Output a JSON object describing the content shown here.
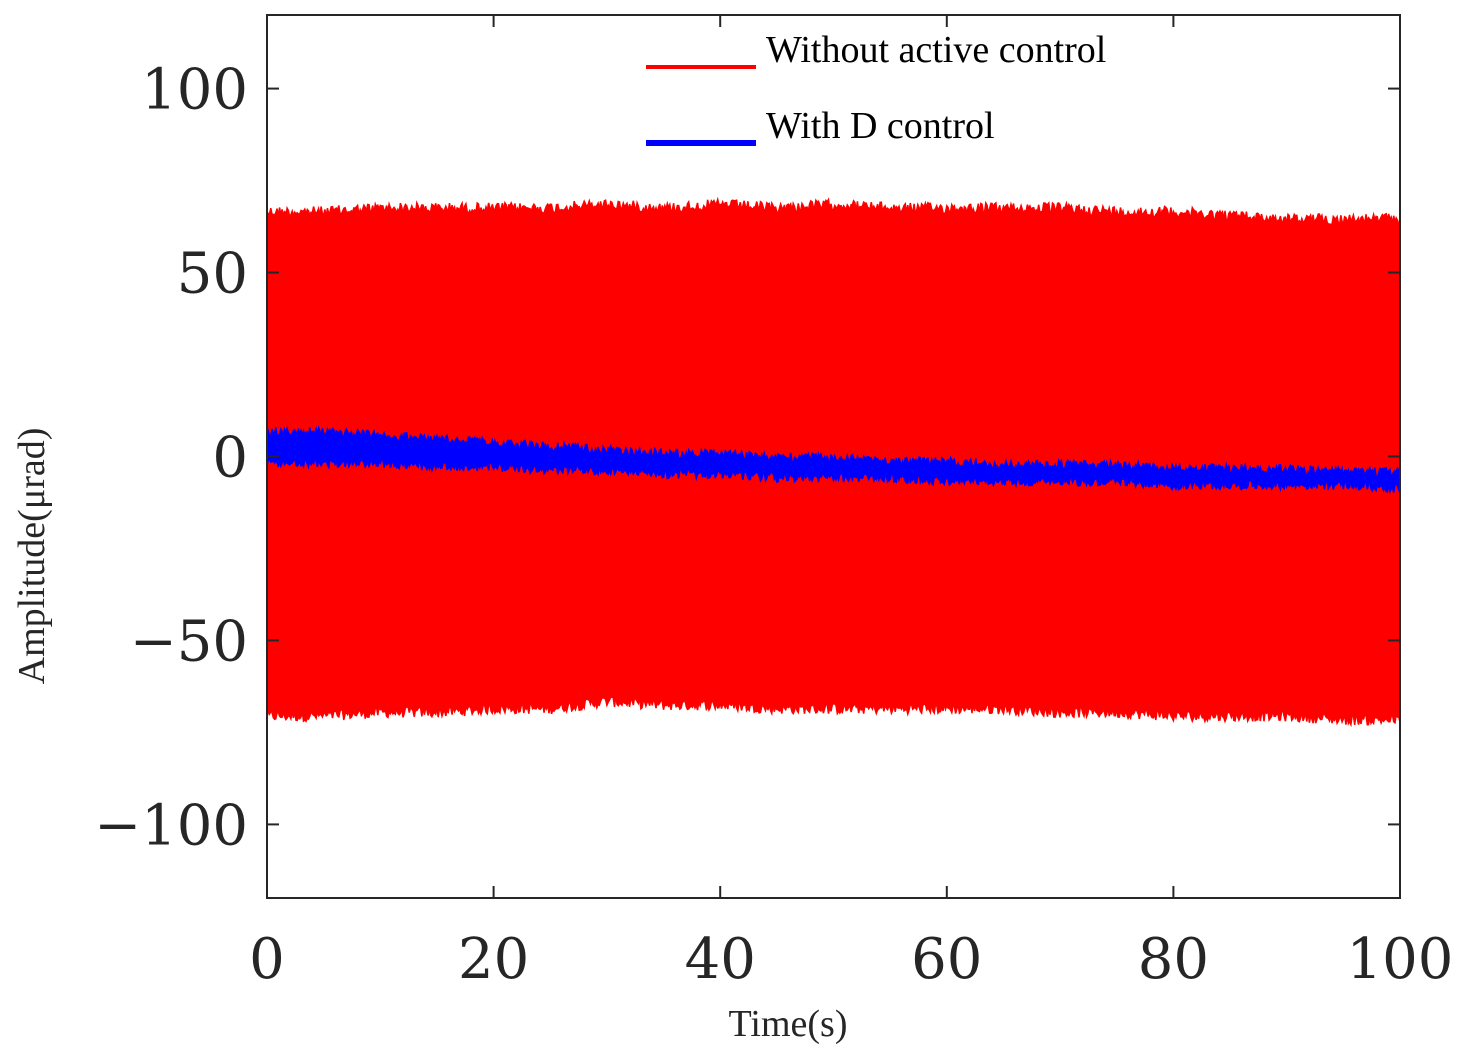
{
  "chart_data": {
    "type": "line",
    "xlabel": "Time(s)",
    "ylabel": "Amplitude(μrad)",
    "xlim": [
      0,
      100
    ],
    "ylim": [
      -120,
      120
    ],
    "xticks": [
      0,
      20,
      40,
      60,
      80,
      100
    ],
    "yticks": [
      100,
      50,
      0,
      -50,
      -100
    ],
    "xtick_labels": [
      "0",
      "20",
      "40",
      "60",
      "80",
      "100"
    ],
    "ytick_labels": [
      "100",
      "50",
      "0",
      "−50",
      "−100"
    ],
    "grid": false,
    "legend_position": "top-right",
    "series": [
      {
        "name": "Without active control",
        "color": "#ff0000",
        "style": "band",
        "x": [
          0,
          5,
          10,
          15,
          20,
          25,
          30,
          35,
          40,
          45,
          50,
          55,
          60,
          65,
          70,
          75,
          80,
          85,
          90,
          95,
          100
        ],
        "upper": [
          68,
          68,
          69,
          69,
          69,
          69,
          70,
          69,
          70,
          69,
          70,
          69,
          69,
          69,
          69,
          68,
          68,
          67,
          66,
          66,
          66
        ],
        "lower": [
          -72,
          -72,
          -71,
          -71,
          -70,
          -70,
          -68,
          -69,
          -69,
          -70,
          -70,
          -70,
          -70,
          -70,
          -71,
          -71,
          -72,
          -72,
          -72,
          -73,
          -73
        ]
      },
      {
        "name": "With D control",
        "color": "#0000ff",
        "style": "band",
        "x": [
          0,
          5,
          10,
          15,
          20,
          25,
          30,
          35,
          40,
          45,
          50,
          55,
          60,
          65,
          70,
          75,
          80,
          85,
          90,
          95,
          100
        ],
        "upper": [
          8,
          8,
          7,
          6,
          5,
          4,
          3,
          2,
          2,
          1,
          1,
          0,
          0,
          -1,
          -1,
          -1,
          -2,
          -2,
          -2,
          -3,
          -3
        ],
        "lower": [
          -3,
          -3,
          -3,
          -4,
          -4,
          -5,
          -5,
          -6,
          -6,
          -7,
          -7,
          -7,
          -8,
          -8,
          -8,
          -8,
          -9,
          -9,
          -9,
          -9,
          -10
        ]
      }
    ]
  }
}
